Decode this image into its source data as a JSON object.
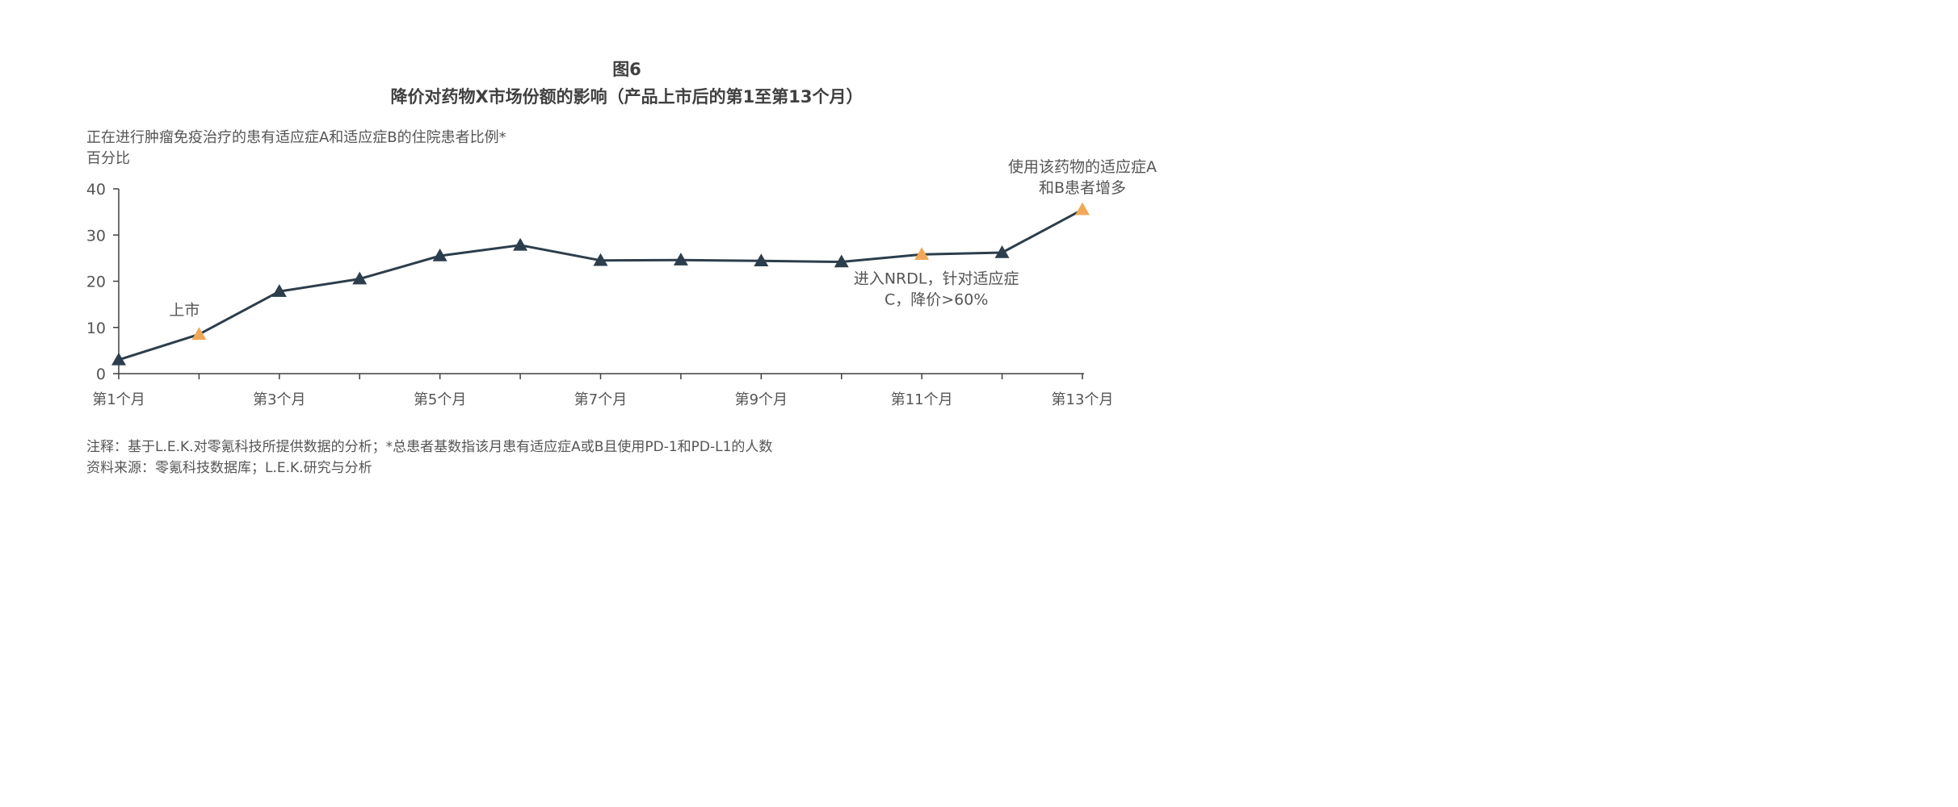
{
  "figure": {
    "label": "图6",
    "title": "降价对药物X市场份额的影响（产品上市后的第1至第13个月）",
    "subtitle": "正在进行肿瘤免疫治疗的患有适应症A和适应症B的住院患者比例*",
    "unit": "百分比"
  },
  "notes": {
    "note": "注释：基于L.E.K.对零氪科技所提供数据的分析；*总患者基数指该月患有适应症A或B且使用PD-1和PD-L1的人数",
    "source": "资料来源：零氪科技数据库；L.E.K.研究与分析"
  },
  "chart_data": {
    "type": "line",
    "x": [
      1,
      2,
      3,
      4,
      5,
      6,
      7,
      8,
      9,
      10,
      11,
      12,
      13
    ],
    "x_tick_labels": [
      "第1个月",
      "",
      "第3个月",
      "",
      "第5个月",
      "",
      "第7个月",
      "",
      "第9个月",
      "",
      "第11个月",
      "",
      "第13个月"
    ],
    "values": [
      3,
      8.5,
      17.8,
      20.5,
      25.5,
      27.8,
      24.5,
      24.6,
      24.4,
      24.2,
      25.8,
      26.2,
      35.5
    ],
    "highlighted_points": [
      2,
      11,
      13
    ],
    "ylim": [
      0,
      40
    ],
    "y_ticks": [
      0,
      10,
      20,
      30,
      40
    ],
    "grid": false,
    "colors": {
      "line": "#2c3e4c",
      "marker": "#2c3e4c",
      "highlight": "#f0a857",
      "axis": "#404040"
    },
    "annotations": [
      {
        "x": 2,
        "lines": [
          "上市"
        ]
      },
      {
        "x": 11,
        "lines": [
          "进入NRDL，针对适应症",
          "C，降价>60%"
        ]
      },
      {
        "x": 13,
        "lines": [
          "使用该药物的适应症A",
          "和B患者增多"
        ]
      }
    ]
  }
}
